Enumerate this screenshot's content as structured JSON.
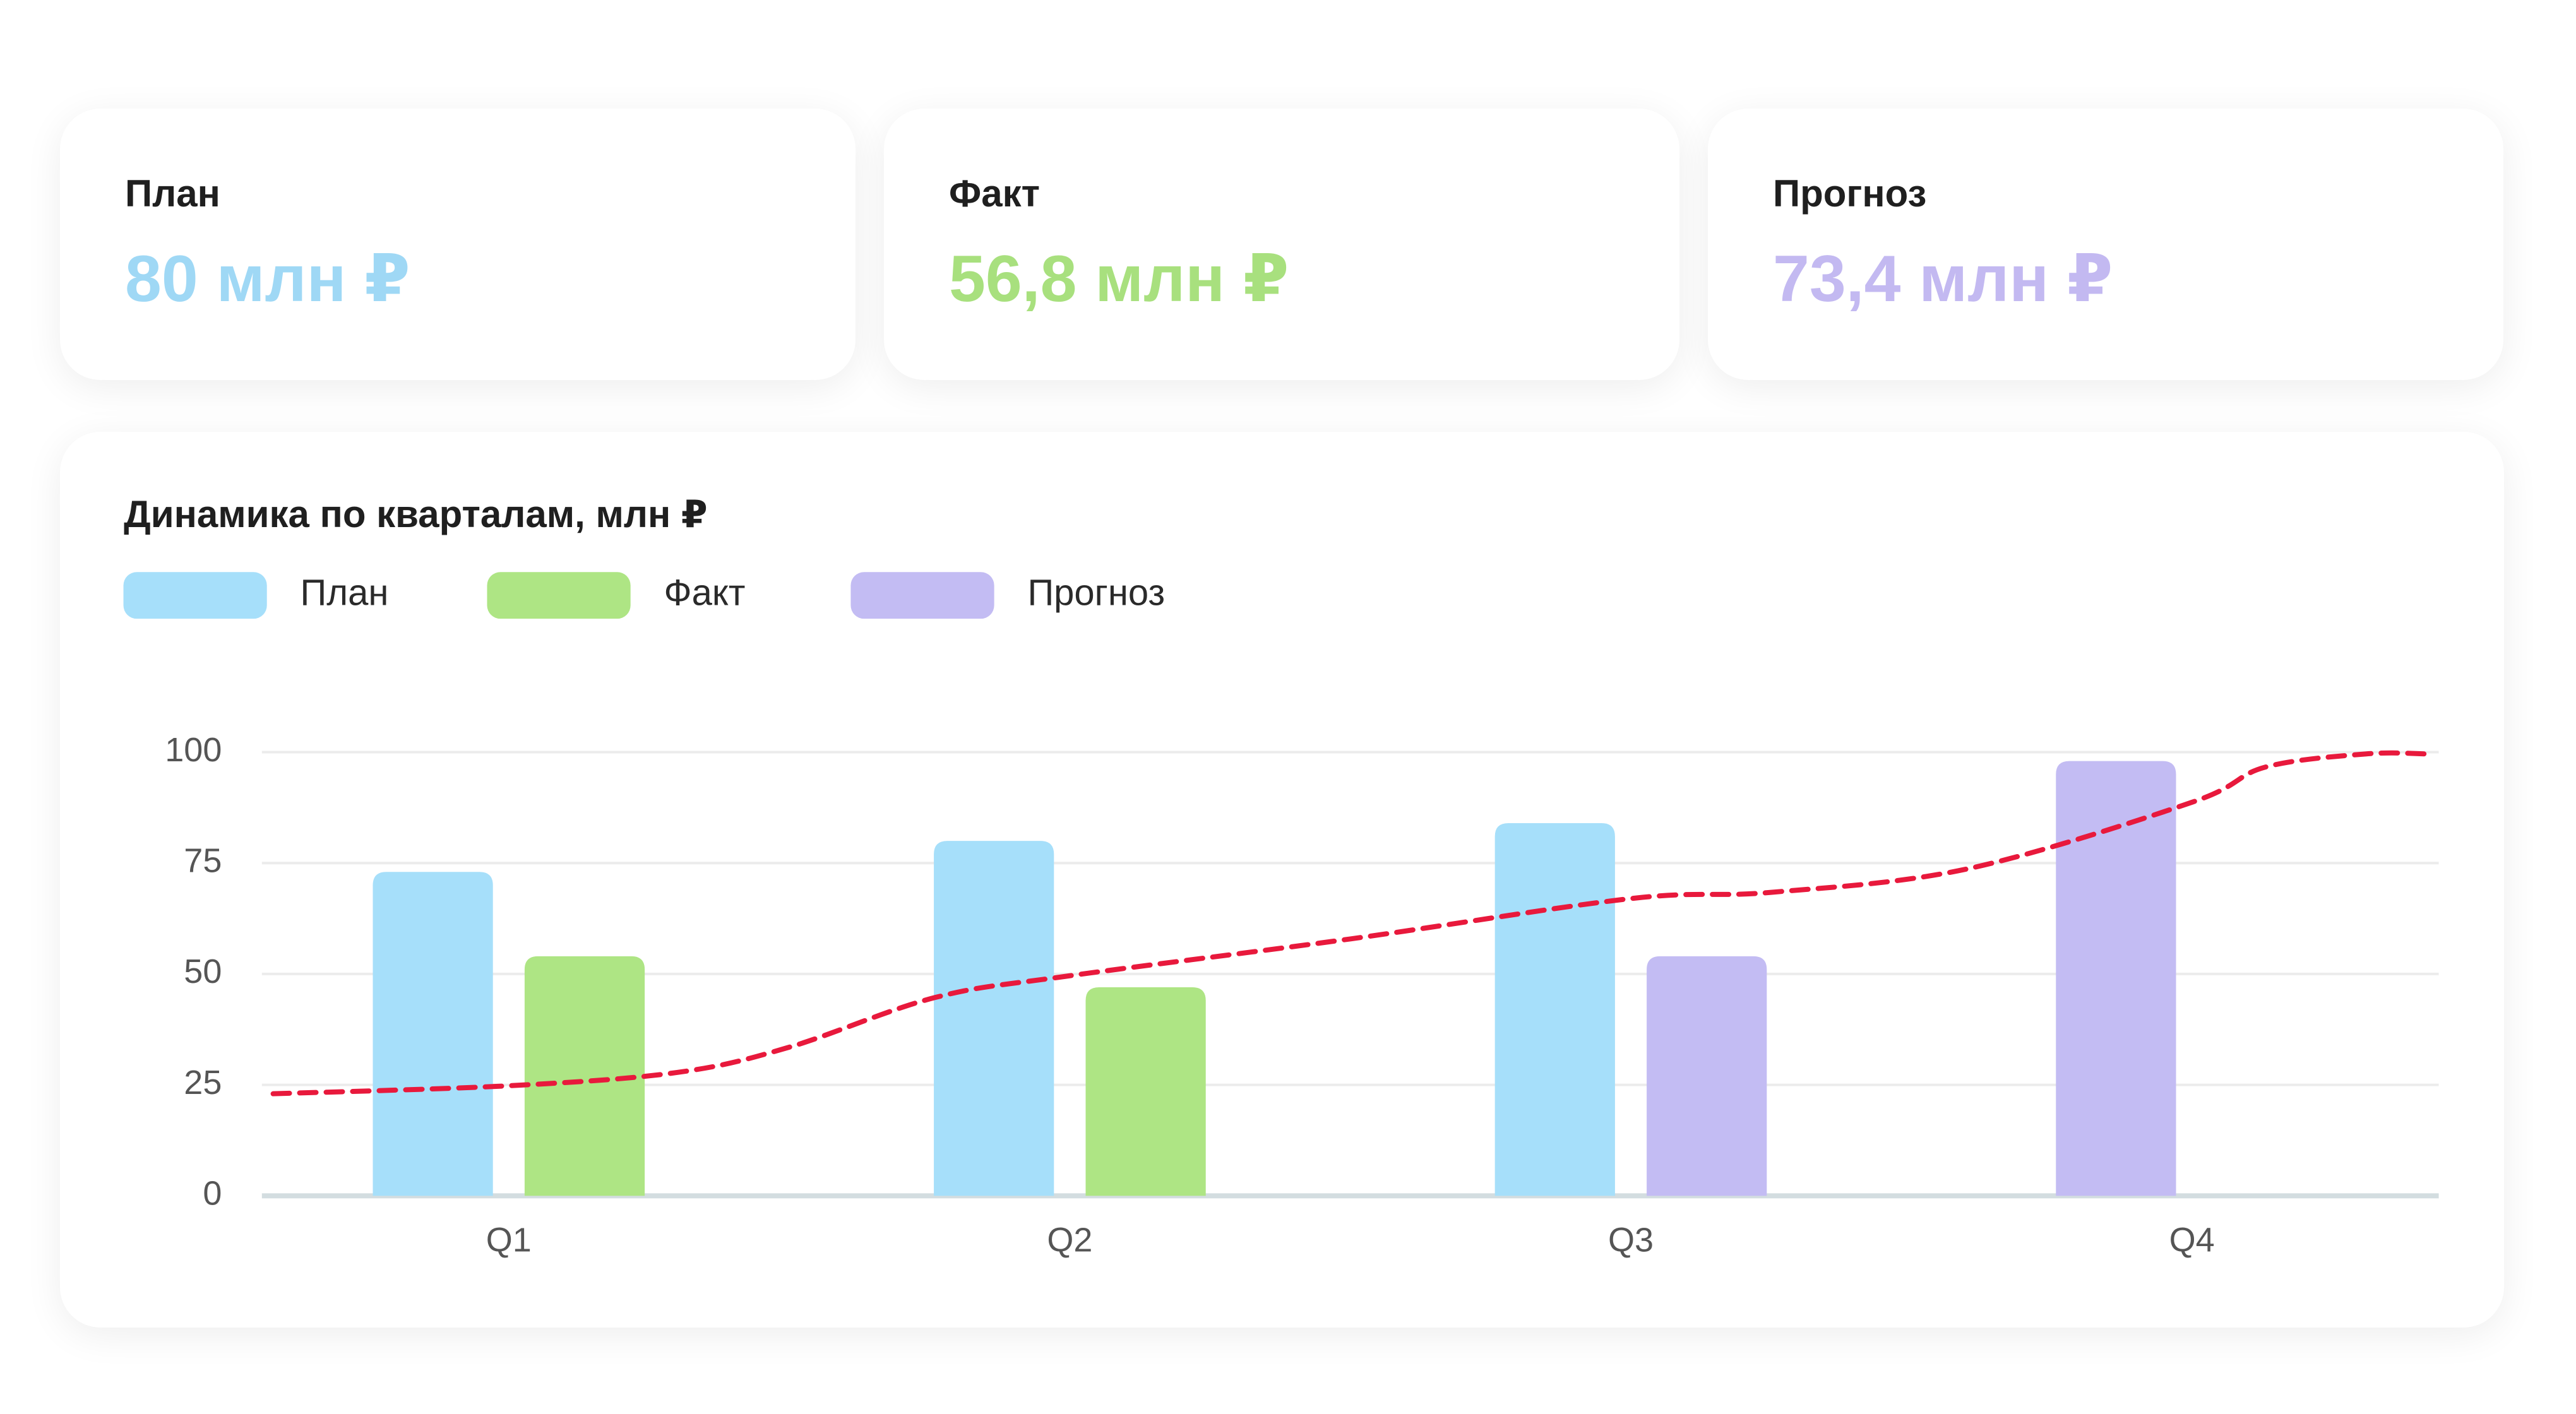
{
  "cards": [
    {
      "label": "План",
      "value": "80 млн ₽",
      "color": "#9fd8f5"
    },
    {
      "label": "Факт",
      "value": "56,8 млн ₽",
      "color": "#a8e07e"
    },
    {
      "label": "Прогноз",
      "value": "73,4 млн ₽",
      "color": "#c3b9f1"
    }
  ],
  "chart_data": {
    "type": "bar",
    "title": "Динамика по кварталам, млн ₽",
    "categories": [
      "Q1",
      "Q2",
      "Q3",
      "Q4"
    ],
    "series": [
      {
        "name": "План",
        "color": "#a6dffa",
        "values": [
          73,
          80,
          84,
          null
        ]
      },
      {
        "name": "Факт",
        "color": "#aee584",
        "values": [
          54,
          47,
          null,
          null
        ]
      },
      {
        "name": "Прогноз",
        "color": "#c3bcf3",
        "values": [
          null,
          null,
          54,
          98
        ]
      }
    ],
    "ylim": [
      0,
      100
    ],
    "yticks": [
      0,
      25,
      50,
      75,
      100
    ],
    "grid": true,
    "trend": {
      "type": "line",
      "color": "#e8193c",
      "dashed": true,
      "x": [
        -0.42,
        0,
        0.3,
        0.5,
        0.76,
        1,
        1.5,
        2,
        2.25,
        2.6,
        3,
        3.13,
        3.31,
        3.42
      ],
      "values": [
        23,
        24.8,
        27.8,
        33.5,
        44.7,
        49.6,
        57.9,
        67,
        68.4,
        73.7,
        88.7,
        96.6,
        99.6,
        99.6
      ]
    }
  }
}
